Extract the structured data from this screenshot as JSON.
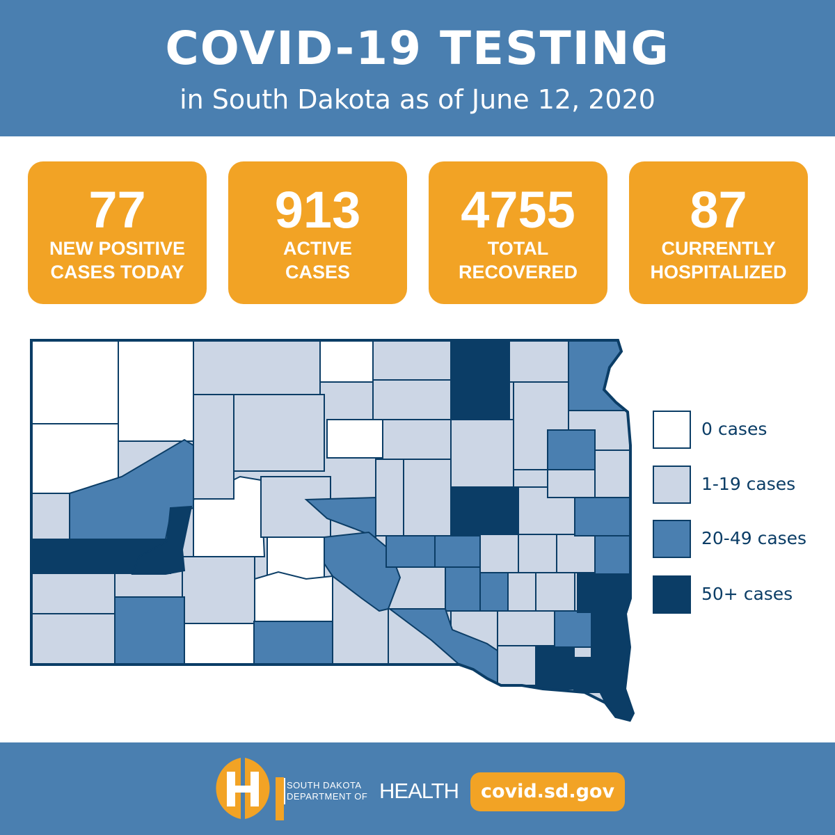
{
  "header": {
    "title": "COVID-19 TESTING",
    "subtitle": "in South Dakota as of June 12, 2020"
  },
  "stats": [
    {
      "value": "77",
      "label_line1": "NEW POSITIVE",
      "label_line2": "CASES TODAY"
    },
    {
      "value": "913",
      "label_line1": "ACTIVE",
      "label_line2": "CASES"
    },
    {
      "value": "4755",
      "label_line1": "TOTAL",
      "label_line2": "RECOVERED"
    },
    {
      "value": "87",
      "label_line1": "CURRENTLY",
      "label_line2": "HOSPITALIZED"
    }
  ],
  "legend": [
    {
      "label": "0 cases",
      "color": "#ffffff"
    },
    {
      "label": "1-19 cases",
      "color": "#ccd6e5"
    },
    {
      "label": "20-49 cases",
      "color": "#4a7fb0"
    },
    {
      "label": "50+ cases",
      "color": "#0b3d66"
    }
  ],
  "colors": {
    "header_bg": "#4a7fb0",
    "stat_bg": "#f2a325",
    "map_outline": "#0b3d66"
  },
  "footer": {
    "org_line1": "SOUTH DAKOTA",
    "org_line2": "DEPARTMENT OF",
    "org_health": "HEALTH",
    "url": "covid.sd.gov"
  }
}
